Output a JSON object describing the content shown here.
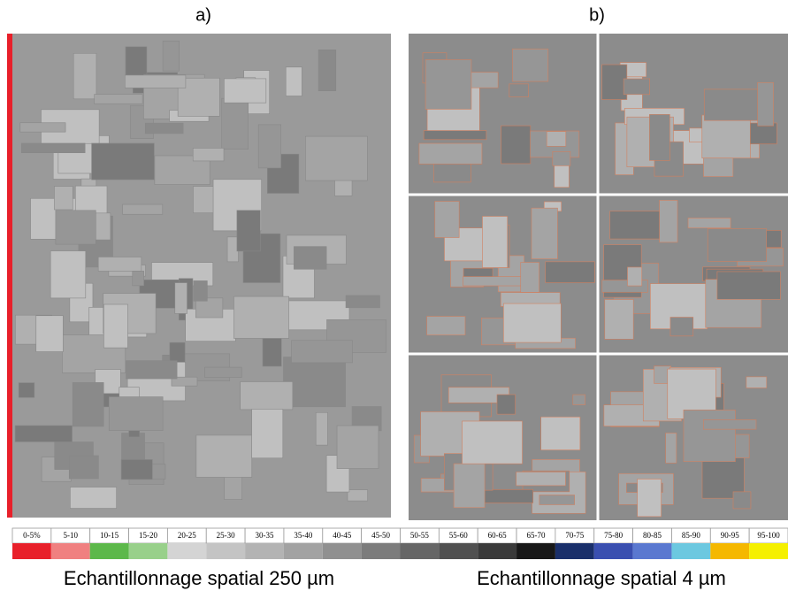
{
  "panels": [
    {
      "label": "a)",
      "caption": "Echantillonnage spatial 250 µm"
    },
    {
      "label": "b)",
      "caption": "Echantillonnage spatial 4 µm"
    }
  ],
  "legend": {
    "items": [
      {
        "label": "0-5%",
        "color": "#e8202a"
      },
      {
        "label": "5-10",
        "color": "#f08080"
      },
      {
        "label": "10-15",
        "color": "#5cb84a"
      },
      {
        "label": "15-20",
        "color": "#98d08a"
      },
      {
        "label": "20-25",
        "color": "#d4d4d4"
      },
      {
        "label": "25-30",
        "color": "#c4c4c4"
      },
      {
        "label": "30-35",
        "color": "#b3b3b3"
      },
      {
        "label": "35-40",
        "color": "#a2a2a2"
      },
      {
        "label": "40-45",
        "color": "#909090"
      },
      {
        "label": "45-50",
        "color": "#7c7c7c"
      },
      {
        "label": "50-55",
        "color": "#666666"
      },
      {
        "label": "55-60",
        "color": "#505050"
      },
      {
        "label": "60-65",
        "color": "#3a3a3a"
      },
      {
        "label": "65-70",
        "color": "#181818"
      },
      {
        "label": "70-75",
        "color": "#1a2f6a"
      },
      {
        "label": "75-80",
        "color": "#3a4fb0"
      },
      {
        "label": "80-85",
        "color": "#5a78d0"
      },
      {
        "label": "85-90",
        "color": "#6cc8e0"
      },
      {
        "label": "90-95",
        "color": "#f5b800"
      },
      {
        "label": "95-100",
        "color": "#f5f000"
      }
    ]
  }
}
